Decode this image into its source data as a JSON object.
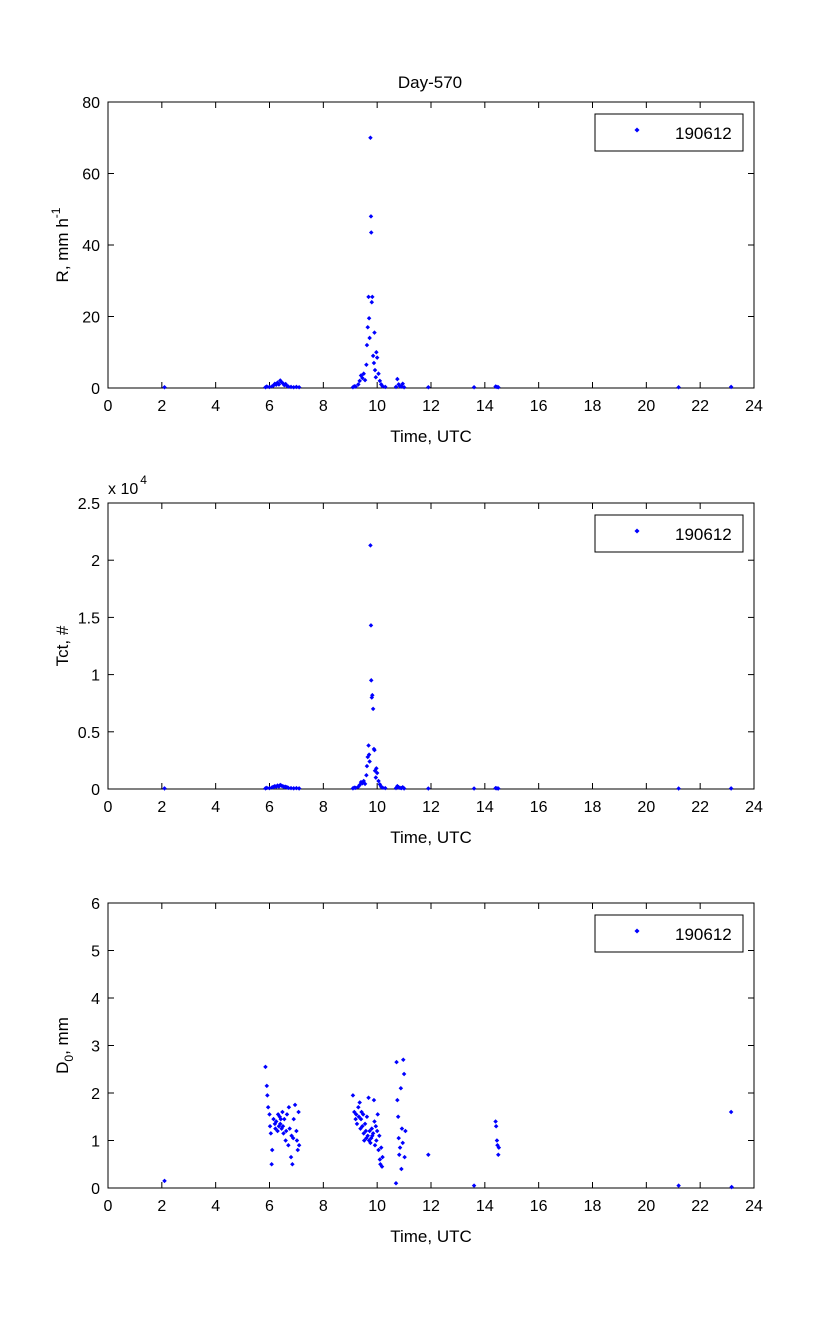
{
  "figure_title": "Day-570",
  "colors": {
    "marker": "#0000ff",
    "axis": "#000000",
    "background": "#ffffff"
  },
  "chart_data": [
    {
      "type": "scatter",
      "title": "Day-570",
      "xlabel": "Time, UTC",
      "ylabel": "R, mm h",
      "ylabel_sup": "-1",
      "ylabel_sub": "",
      "xlim": [
        0,
        24
      ],
      "ylim": [
        0,
        80
      ],
      "xticks": [
        0,
        2,
        4,
        6,
        8,
        10,
        12,
        14,
        16,
        18,
        20,
        22,
        24
      ],
      "yticks": [
        0,
        20,
        40,
        60,
        80
      ],
      "ytick_labels": [
        "0",
        "20",
        "40",
        "60",
        "80"
      ],
      "multiplier": "",
      "multiplier_exp": "",
      "legend": {
        "position": "top-right",
        "label": "190612"
      },
      "series": [
        {
          "name": "190612",
          "points": [
            [
              2.1,
              0.2
            ],
            [
              5.85,
              0.2
            ],
            [
              5.9,
              0.4
            ],
            [
              6.0,
              0.3
            ],
            [
              6.1,
              0.5
            ],
            [
              6.15,
              0.7
            ],
            [
              6.2,
              1.2
            ],
            [
              6.25,
              0.9
            ],
            [
              6.3,
              1.5
            ],
            [
              6.35,
              1.0
            ],
            [
              6.4,
              2.1
            ],
            [
              6.45,
              1.6
            ],
            [
              6.5,
              1.3
            ],
            [
              6.55,
              0.8
            ],
            [
              6.6,
              1.1
            ],
            [
              6.65,
              0.6
            ],
            [
              6.7,
              0.4
            ],
            [
              6.8,
              0.3
            ],
            [
              6.9,
              0.2
            ],
            [
              7.0,
              0.3
            ],
            [
              7.1,
              0.2
            ],
            [
              9.1,
              0.2
            ],
            [
              9.15,
              0.5
            ],
            [
              9.2,
              0.4
            ],
            [
              9.3,
              1.0
            ],
            [
              9.35,
              2.0
            ],
            [
              9.4,
              3.5
            ],
            [
              9.45,
              2.8
            ],
            [
              9.5,
              4.0
            ],
            [
              9.55,
              2.2
            ],
            [
              9.6,
              6.5
            ],
            [
              9.62,
              12.0
            ],
            [
              9.65,
              17.0
            ],
            [
              9.68,
              25.5
            ],
            [
              9.7,
              19.5
            ],
            [
              9.72,
              14.0
            ],
            [
              9.75,
              70.0
            ],
            [
              9.77,
              48.0
            ],
            [
              9.78,
              43.5
            ],
            [
              9.8,
              24.0
            ],
            [
              9.82,
              25.5
            ],
            [
              9.85,
              9.0
            ],
            [
              9.88,
              7.0
            ],
            [
              9.9,
              15.5
            ],
            [
              9.92,
              5.0
            ],
            [
              9.95,
              3.0
            ],
            [
              9.97,
              10.0
            ],
            [
              10.0,
              8.5
            ],
            [
              10.05,
              4.0
            ],
            [
              10.1,
              2.0
            ],
            [
              10.15,
              1.0
            ],
            [
              10.2,
              0.5
            ],
            [
              10.3,
              0.3
            ],
            [
              10.7,
              0.3
            ],
            [
              10.75,
              2.5
            ],
            [
              10.8,
              1.0
            ],
            [
              10.85,
              0.5
            ],
            [
              10.9,
              0.4
            ],
            [
              10.95,
              1.2
            ],
            [
              11.0,
              0.2
            ],
            [
              11.9,
              0.2
            ],
            [
              13.6,
              0.2
            ],
            [
              14.4,
              0.4
            ],
            [
              14.45,
              0.3
            ],
            [
              14.5,
              0.2
            ],
            [
              21.2,
              0.2
            ],
            [
              23.15,
              0.3
            ]
          ]
        }
      ]
    },
    {
      "type": "scatter",
      "title": "",
      "xlabel": "Time, UTC",
      "ylabel": "Tct, #",
      "ylabel_sup": "",
      "ylabel_sub": "",
      "xlim": [
        0,
        24
      ],
      "ylim": [
        0,
        25000
      ],
      "xticks": [
        0,
        2,
        4,
        6,
        8,
        10,
        12,
        14,
        16,
        18,
        20,
        22,
        24
      ],
      "yticks": [
        0,
        5000,
        10000,
        15000,
        20000,
        25000
      ],
      "ytick_labels": [
        "0",
        "0.5",
        "1",
        "1.5",
        "2",
        "2.5"
      ],
      "multiplier": "x 10",
      "multiplier_exp": "4",
      "legend": {
        "position": "top-right",
        "label": "190612"
      },
      "series": [
        {
          "name": "190612",
          "points": [
            [
              2.1,
              50
            ],
            [
              5.85,
              60
            ],
            [
              5.9,
              100
            ],
            [
              6.0,
              80
            ],
            [
              6.1,
              150
            ],
            [
              6.15,
              180
            ],
            [
              6.2,
              250
            ],
            [
              6.25,
              200
            ],
            [
              6.3,
              300
            ],
            [
              6.35,
              220
            ],
            [
              6.4,
              350
            ],
            [
              6.45,
              280
            ],
            [
              6.5,
              240
            ],
            [
              6.55,
              180
            ],
            [
              6.6,
              200
            ],
            [
              6.65,
              150
            ],
            [
              6.7,
              100
            ],
            [
              6.8,
              80
            ],
            [
              6.9,
              60
            ],
            [
              7.0,
              80
            ],
            [
              7.1,
              50
            ],
            [
              9.1,
              60
            ],
            [
              9.15,
              120
            ],
            [
              9.2,
              100
            ],
            [
              9.3,
              200
            ],
            [
              9.35,
              350
            ],
            [
              9.4,
              600
            ],
            [
              9.45,
              500
            ],
            [
              9.5,
              700
            ],
            [
              9.55,
              450
            ],
            [
              9.6,
              1200
            ],
            [
              9.62,
              2000
            ],
            [
              9.65,
              2800
            ],
            [
              9.68,
              3800
            ],
            [
              9.7,
              3000
            ],
            [
              9.72,
              2400
            ],
            [
              9.75,
              21300
            ],
            [
              9.77,
              14300
            ],
            [
              9.78,
              9500
            ],
            [
              9.8,
              8000
            ],
            [
              9.82,
              8200
            ],
            [
              9.85,
              7000
            ],
            [
              9.88,
              3500
            ],
            [
              9.9,
              3400
            ],
            [
              9.92,
              1600
            ],
            [
              9.95,
              1000
            ],
            [
              9.97,
              1800
            ],
            [
              10.0,
              1400
            ],
            [
              10.05,
              700
            ],
            [
              10.1,
              400
            ],
            [
              10.15,
              200
            ],
            [
              10.2,
              120
            ],
            [
              10.3,
              80
            ],
            [
              10.7,
              80
            ],
            [
              10.75,
              250
            ],
            [
              10.8,
              150
            ],
            [
              10.85,
              100
            ],
            [
              10.9,
              80
            ],
            [
              10.95,
              150
            ],
            [
              11.0,
              50
            ],
            [
              11.9,
              40
            ],
            [
              13.6,
              40
            ],
            [
              14.4,
              80
            ],
            [
              14.45,
              60
            ],
            [
              14.5,
              40
            ],
            [
              21.2,
              40
            ],
            [
              23.15,
              50
            ]
          ]
        }
      ]
    },
    {
      "type": "scatter",
      "title": "",
      "xlabel": "Time, UTC",
      "ylabel": "D",
      "ylabel_sup": "",
      "ylabel_sub": "0",
      "ylabel_suffix": ", mm",
      "xlim": [
        0,
        24
      ],
      "ylim": [
        0,
        6
      ],
      "xticks": [
        0,
        2,
        4,
        6,
        8,
        10,
        12,
        14,
        16,
        18,
        20,
        22,
        24
      ],
      "yticks": [
        0,
        1,
        2,
        3,
        4,
        5,
        6
      ],
      "ytick_labels": [
        "0",
        "1",
        "2",
        "3",
        "4",
        "5",
        "6"
      ],
      "multiplier": "",
      "multiplier_exp": "",
      "legend": {
        "position": "top-right",
        "label": "190612"
      },
      "series": [
        {
          "name": "190612",
          "points": [
            [
              2.1,
              0.15
            ],
            [
              5.85,
              2.55
            ],
            [
              5.9,
              2.15
            ],
            [
              5.92,
              1.95
            ],
            [
              5.95,
              1.7
            ],
            [
              6.0,
              1.55
            ],
            [
              6.02,
              1.3
            ],
            [
              6.05,
              1.15
            ],
            [
              6.08,
              0.5
            ],
            [
              6.1,
              0.8
            ],
            [
              6.15,
              1.45
            ],
            [
              6.2,
              1.35
            ],
            [
              6.22,
              1.25
            ],
            [
              6.25,
              1.4
            ],
            [
              6.3,
              1.2
            ],
            [
              6.32,
              1.55
            ],
            [
              6.35,
              1.3
            ],
            [
              6.38,
              1.5
            ],
            [
              6.4,
              1.35
            ],
            [
              6.42,
              1.45
            ],
            [
              6.45,
              1.25
            ],
            [
              6.48,
              1.6
            ],
            [
              6.5,
              1.3
            ],
            [
              6.52,
              1.15
            ],
            [
              6.55,
              1.45
            ],
            [
              6.6,
              1.0
            ],
            [
              6.62,
              1.2
            ],
            [
              6.65,
              1.55
            ],
            [
              6.7,
              0.9
            ],
            [
              6.72,
              1.7
            ],
            [
              6.75,
              1.25
            ],
            [
              6.8,
              0.65
            ],
            [
              6.82,
              1.1
            ],
            [
              6.85,
              0.5
            ],
            [
              6.88,
              1.05
            ],
            [
              6.9,
              1.45
            ],
            [
              6.95,
              1.75
            ],
            [
              7.0,
              1.2
            ],
            [
              7.02,
              1.0
            ],
            [
              7.05,
              0.8
            ],
            [
              7.08,
              1.6
            ],
            [
              7.1,
              0.9
            ],
            [
              9.1,
              1.95
            ],
            [
              9.15,
              1.6
            ],
            [
              9.2,
              1.45
            ],
            [
              9.22,
              1.55
            ],
            [
              9.25,
              1.35
            ],
            [
              9.3,
              1.7
            ],
            [
              9.32,
              1.5
            ],
            [
              9.35,
              1.8
            ],
            [
              9.38,
              1.25
            ],
            [
              9.4,
              1.45
            ],
            [
              9.42,
              1.6
            ],
            [
              9.45,
              1.3
            ],
            [
              9.48,
              1.55
            ],
            [
              9.5,
              1.15
            ],
            [
              9.52,
              1.0
            ],
            [
              9.55,
              1.35
            ],
            [
              9.58,
              1.2
            ],
            [
              9.6,
              1.05
            ],
            [
              9.62,
              1.5
            ],
            [
              9.65,
              1.1
            ],
            [
              9.68,
              1.9
            ],
            [
              9.7,
              1.0
            ],
            [
              9.72,
              1.2
            ],
            [
              9.75,
              0.95
            ],
            [
              9.78,
              1.05
            ],
            [
              9.8,
              1.25
            ],
            [
              9.82,
              1.1
            ],
            [
              9.85,
              1.15
            ],
            [
              9.88,
              1.85
            ],
            [
              9.9,
              1.4
            ],
            [
              9.92,
              0.9
            ],
            [
              9.95,
              1.3
            ],
            [
              9.97,
              1.0
            ],
            [
              10.0,
              1.2
            ],
            [
              10.02,
              1.55
            ],
            [
              10.05,
              0.8
            ],
            [
              10.08,
              1.1
            ],
            [
              10.1,
              0.6
            ],
            [
              10.12,
              0.5
            ],
            [
              10.15,
              0.85
            ],
            [
              10.18,
              0.45
            ],
            [
              10.2,
              0.65
            ],
            [
              10.7,
              0.1
            ],
            [
              10.72,
              2.65
            ],
            [
              10.75,
              1.85
            ],
            [
              10.78,
              1.5
            ],
            [
              10.8,
              1.05
            ],
            [
              10.82,
              0.7
            ],
            [
              10.85,
              0.85
            ],
            [
              10.88,
              2.1
            ],
            [
              10.9,
              0.4
            ],
            [
              10.92,
              1.25
            ],
            [
              10.95,
              0.95
            ],
            [
              10.97,
              2.7
            ],
            [
              11.0,
              2.4
            ],
            [
              11.02,
              0.65
            ],
            [
              11.05,
              1.2
            ],
            [
              11.9,
              0.7
            ],
            [
              13.6,
              0.05
            ],
            [
              14.4,
              1.4
            ],
            [
              14.42,
              1.3
            ],
            [
              14.45,
              1.0
            ],
            [
              14.47,
              0.9
            ],
            [
              14.5,
              0.7
            ],
            [
              14.52,
              0.85
            ],
            [
              21.2,
              0.05
            ],
            [
              23.15,
              1.6
            ],
            [
              23.17,
              0.02
            ]
          ]
        }
      ]
    }
  ]
}
